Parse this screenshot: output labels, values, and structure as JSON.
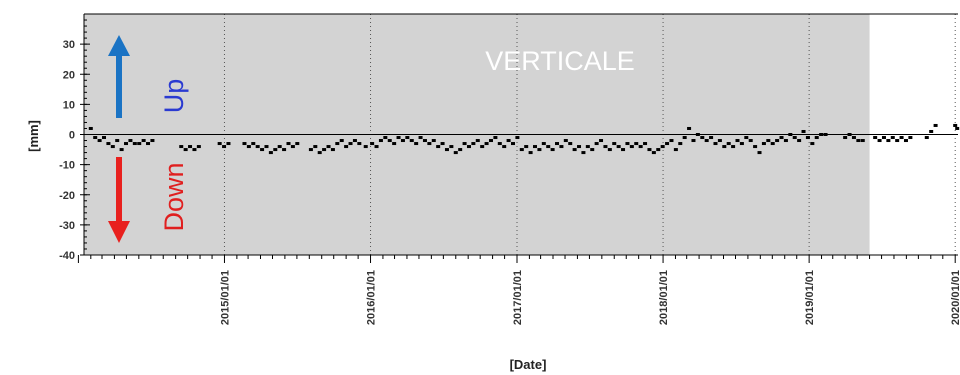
{
  "chart_data": {
    "type": "scatter",
    "title": "VERTICALE",
    "xlabel": "[Date]",
    "ylabel": "[mm]",
    "xlim": [
      "2014-01-15",
      "2020-01-08"
    ],
    "ylim": [
      -40,
      40
    ],
    "y_ticks": [
      30,
      20,
      10,
      0,
      -10,
      -20,
      -30,
      -40
    ],
    "x_ticks": [
      "2015/01/01",
      "2016/01/01",
      "2017/01/01",
      "2018/01/01",
      "2019/01/01",
      "2020/01/01"
    ],
    "grid": true,
    "shaded_period": [
      "2014-01-15",
      "2019-06-01"
    ],
    "shaded_color": "#d3d3d3",
    "point_color": "#000000",
    "annotations": {
      "up": {
        "text": "Up",
        "color": "#2a3ad1",
        "arrow_color": "#1a73c4"
      },
      "down": {
        "text": "Down",
        "color": "#e01f1f",
        "arrow_color": "#e8201e"
      }
    },
    "points": [
      {
        "x": "2014-02-01",
        "y": 2
      },
      {
        "x": "2014-02-12",
        "y": -1
      },
      {
        "x": "2014-02-23",
        "y": -2
      },
      {
        "x": "2014-03-06",
        "y": -1
      },
      {
        "x": "2014-03-17",
        "y": -3
      },
      {
        "x": "2014-03-28",
        "y": -4
      },
      {
        "x": "2014-04-08",
        "y": -2
      },
      {
        "x": "2014-04-19",
        "y": -5
      },
      {
        "x": "2014-04-30",
        "y": -3
      },
      {
        "x": "2014-05-11",
        "y": -2
      },
      {
        "x": "2014-05-22",
        "y": -3
      },
      {
        "x": "2014-06-02",
        "y": -3
      },
      {
        "x": "2014-06-13",
        "y": -2
      },
      {
        "x": "2014-06-24",
        "y": -3
      },
      {
        "x": "2014-07-05",
        "y": -2
      },
      {
        "x": "2014-09-15",
        "y": -4
      },
      {
        "x": "2014-09-26",
        "y": -5
      },
      {
        "x": "2014-10-07",
        "y": -4
      },
      {
        "x": "2014-10-18",
        "y": -5
      },
      {
        "x": "2014-10-29",
        "y": -4
      },
      {
        "x": "2014-12-20",
        "y": -3
      },
      {
        "x": "2014-12-31",
        "y": -4
      },
      {
        "x": "2015-01-11",
        "y": -3
      },
      {
        "x": "2015-02-20",
        "y": -3
      },
      {
        "x": "2015-03-03",
        "y": -4
      },
      {
        "x": "2015-03-14",
        "y": -3
      },
      {
        "x": "2015-03-25",
        "y": -4
      },
      {
        "x": "2015-04-05",
        "y": -5
      },
      {
        "x": "2015-04-16",
        "y": -4
      },
      {
        "x": "2015-04-27",
        "y": -6
      },
      {
        "x": "2015-05-08",
        "y": -5
      },
      {
        "x": "2015-05-19",
        "y": -4
      },
      {
        "x": "2015-05-30",
        "y": -5
      },
      {
        "x": "2015-06-10",
        "y": -3
      },
      {
        "x": "2015-06-21",
        "y": -4
      },
      {
        "x": "2015-07-02",
        "y": -3
      },
      {
        "x": "2015-08-05",
        "y": -5
      },
      {
        "x": "2015-08-16",
        "y": -4
      },
      {
        "x": "2015-08-27",
        "y": -6
      },
      {
        "x": "2015-09-07",
        "y": -5
      },
      {
        "x": "2015-09-18",
        "y": -4
      },
      {
        "x": "2015-09-29",
        "y": -5
      },
      {
        "x": "2015-10-10",
        "y": -3
      },
      {
        "x": "2015-10-21",
        "y": -2
      },
      {
        "x": "2015-11-01",
        "y": -4
      },
      {
        "x": "2015-11-12",
        "y": -3
      },
      {
        "x": "2015-11-23",
        "y": -2
      },
      {
        "x": "2015-12-04",
        "y": -3
      },
      {
        "x": "2015-12-20",
        "y": -4
      },
      {
        "x": "2016-01-05",
        "y": -3
      },
      {
        "x": "2016-01-16",
        "y": -4
      },
      {
        "x": "2016-01-27",
        "y": -2
      },
      {
        "x": "2016-02-07",
        "y": -1
      },
      {
        "x": "2016-02-18",
        "y": -2
      },
      {
        "x": "2016-02-29",
        "y": -3
      },
      {
        "x": "2016-03-11",
        "y": -1
      },
      {
        "x": "2016-03-22",
        "y": -2
      },
      {
        "x": "2016-04-02",
        "y": -1
      },
      {
        "x": "2016-04-13",
        "y": -2
      },
      {
        "x": "2016-04-24",
        "y": -3
      },
      {
        "x": "2016-05-05",
        "y": -1
      },
      {
        "x": "2016-05-16",
        "y": -2
      },
      {
        "x": "2016-05-27",
        "y": -3
      },
      {
        "x": "2016-06-07",
        "y": -2
      },
      {
        "x": "2016-06-18",
        "y": -4
      },
      {
        "x": "2016-06-29",
        "y": -3
      },
      {
        "x": "2016-07-10",
        "y": -5
      },
      {
        "x": "2016-07-21",
        "y": -4
      },
      {
        "x": "2016-08-01",
        "y": -6
      },
      {
        "x": "2016-08-12",
        "y": -5
      },
      {
        "x": "2016-08-23",
        "y": -3
      },
      {
        "x": "2016-09-03",
        "y": -4
      },
      {
        "x": "2016-09-14",
        "y": -3
      },
      {
        "x": "2016-09-25",
        "y": -2
      },
      {
        "x": "2016-10-06",
        "y": -4
      },
      {
        "x": "2016-10-17",
        "y": -3
      },
      {
        "x": "2016-10-28",
        "y": -2
      },
      {
        "x": "2016-11-08",
        "y": -1
      },
      {
        "x": "2016-11-19",
        "y": -3
      },
      {
        "x": "2016-11-30",
        "y": -4
      },
      {
        "x": "2016-12-11",
        "y": -2
      },
      {
        "x": "2016-12-22",
        "y": -3
      },
      {
        "x": "2017-01-02",
        "y": -1
      },
      {
        "x": "2017-01-13",
        "y": -5
      },
      {
        "x": "2017-01-24",
        "y": -4
      },
      {
        "x": "2017-02-04",
        "y": -6
      },
      {
        "x": "2017-02-15",
        "y": -4
      },
      {
        "x": "2017-02-26",
        "y": -5
      },
      {
        "x": "2017-03-09",
        "y": -3
      },
      {
        "x": "2017-03-20",
        "y": -4
      },
      {
        "x": "2017-03-31",
        "y": -5
      },
      {
        "x": "2017-04-11",
        "y": -3
      },
      {
        "x": "2017-04-22",
        "y": -4
      },
      {
        "x": "2017-05-03",
        "y": -2
      },
      {
        "x": "2017-05-14",
        "y": -3
      },
      {
        "x": "2017-05-25",
        "y": -5
      },
      {
        "x": "2017-06-05",
        "y": -4
      },
      {
        "x": "2017-06-16",
        "y": -6
      },
      {
        "x": "2017-06-27",
        "y": -4
      },
      {
        "x": "2017-07-08",
        "y": -5
      },
      {
        "x": "2017-07-19",
        "y": -3
      },
      {
        "x": "2017-07-30",
        "y": -2
      },
      {
        "x": "2017-08-10",
        "y": -4
      },
      {
        "x": "2017-08-21",
        "y": -5
      },
      {
        "x": "2017-09-01",
        "y": -3
      },
      {
        "x": "2017-09-12",
        "y": -4
      },
      {
        "x": "2017-09-23",
        "y": -5
      },
      {
        "x": "2017-10-04",
        "y": -3
      },
      {
        "x": "2017-10-15",
        "y": -4
      },
      {
        "x": "2017-10-26",
        "y": -3
      },
      {
        "x": "2017-11-06",
        "y": -4
      },
      {
        "x": "2017-11-17",
        "y": -3
      },
      {
        "x": "2017-11-28",
        "y": -5
      },
      {
        "x": "2017-12-09",
        "y": -6
      },
      {
        "x": "2017-12-20",
        "y": -5
      },
      {
        "x": "2017-12-31",
        "y": -4
      },
      {
        "x": "2018-01-11",
        "y": -3
      },
      {
        "x": "2018-01-22",
        "y": -2
      },
      {
        "x": "2018-02-02",
        "y": -5
      },
      {
        "x": "2018-02-13",
        "y": -3
      },
      {
        "x": "2018-02-24",
        "y": -1
      },
      {
        "x": "2018-03-07",
        "y": 2
      },
      {
        "x": "2018-03-18",
        "y": -2
      },
      {
        "x": "2018-03-29",
        "y": 0
      },
      {
        "x": "2018-04-09",
        "y": -1
      },
      {
        "x": "2018-04-20",
        "y": -2
      },
      {
        "x": "2018-05-01",
        "y": -1
      },
      {
        "x": "2018-05-12",
        "y": -3
      },
      {
        "x": "2018-05-23",
        "y": -2
      },
      {
        "x": "2018-06-03",
        "y": -4
      },
      {
        "x": "2018-06-14",
        "y": -3
      },
      {
        "x": "2018-06-25",
        "y": -4
      },
      {
        "x": "2018-07-06",
        "y": -2
      },
      {
        "x": "2018-07-17",
        "y": -3
      },
      {
        "x": "2018-07-28",
        "y": -1
      },
      {
        "x": "2018-08-08",
        "y": -2
      },
      {
        "x": "2018-08-19",
        "y": -4
      },
      {
        "x": "2018-08-30",
        "y": -6
      },
      {
        "x": "2018-09-10",
        "y": -3
      },
      {
        "x": "2018-09-21",
        "y": -2
      },
      {
        "x": "2018-10-02",
        "y": -3
      },
      {
        "x": "2018-10-13",
        "y": -2
      },
      {
        "x": "2018-10-24",
        "y": -1
      },
      {
        "x": "2018-11-04",
        "y": -2
      },
      {
        "x": "2018-11-15",
        "y": 0
      },
      {
        "x": "2018-11-26",
        "y": -1
      },
      {
        "x": "2018-12-07",
        "y": -2
      },
      {
        "x": "2018-12-18",
        "y": 1
      },
      {
        "x": "2018-12-29",
        "y": -1
      },
      {
        "x": "2019-01-09",
        "y": -3
      },
      {
        "x": "2019-01-20",
        "y": -1
      },
      {
        "x": "2019-01-31",
        "y": 0
      },
      {
        "x": "2019-02-11",
        "y": 0
      },
      {
        "x": "2019-04-01",
        "y": -1
      },
      {
        "x": "2019-04-12",
        "y": 0
      },
      {
        "x": "2019-04-23",
        "y": -1
      },
      {
        "x": "2019-05-04",
        "y": -2
      },
      {
        "x": "2019-05-15",
        "y": -2
      },
      {
        "x": "2019-06-15",
        "y": -1
      },
      {
        "x": "2019-06-26",
        "y": -2
      },
      {
        "x": "2019-07-07",
        "y": -1
      },
      {
        "x": "2019-07-18",
        "y": -2
      },
      {
        "x": "2019-07-29",
        "y": -1
      },
      {
        "x": "2019-08-09",
        "y": -2
      },
      {
        "x": "2019-08-20",
        "y": -1
      },
      {
        "x": "2019-08-31",
        "y": -2
      },
      {
        "x": "2019-09-11",
        "y": -1
      },
      {
        "x": "2019-10-22",
        "y": -1
      },
      {
        "x": "2019-11-02",
        "y": 1
      },
      {
        "x": "2019-11-13",
        "y": 3
      },
      {
        "x": "2020-01-01",
        "y": 3
      },
      {
        "x": "2020-01-06",
        "y": 2
      }
    ]
  }
}
